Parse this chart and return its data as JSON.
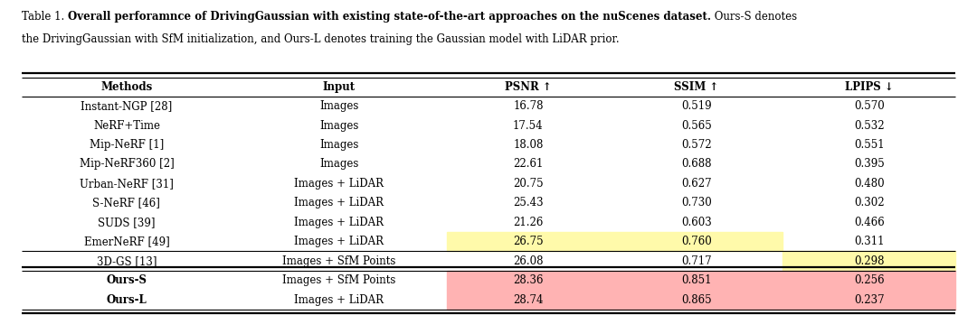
{
  "title_plain": "Table 1. ",
  "title_bold": "Overall perforamnce of DrivingGaussian with existing state-of-the-art approaches on the nuScenes dataset.",
  "title_suffix": " Ours-S denotes",
  "title_line2": "the DrivingGaussian with SfM initialization, and Ours-L denotes training the Gaussian model with LiDAR prior.",
  "columns": [
    "Methods",
    "Input",
    "PSNR ↑",
    "SSIM ↑",
    "LPIPS ↓"
  ],
  "rows": [
    [
      "Instant-NGP [28]",
      "Images",
      "16.78",
      "0.519",
      "0.570"
    ],
    [
      "NeRF+Time",
      "Images",
      "17.54",
      "0.565",
      "0.532"
    ],
    [
      "Mip-NeRF [1]",
      "Images",
      "18.08",
      "0.572",
      "0.551"
    ],
    [
      "Mip-NeRF360 [2]",
      "Images",
      "22.61",
      "0.688",
      "0.395"
    ],
    [
      "Urban-NeRF [31]",
      "Images + LiDAR",
      "20.75",
      "0.627",
      "0.480"
    ],
    [
      "S-NeRF [46]",
      "Images + LiDAR",
      "25.43",
      "0.730",
      "0.302"
    ],
    [
      "SUDS [39]",
      "Images + LiDAR",
      "21.26",
      "0.603",
      "0.466"
    ],
    [
      "EmerNeRF [49]",
      "Images + LiDAR",
      "26.75",
      "0.760",
      "0.311"
    ],
    [
      "3D-GS [13]",
      "Images + SfM Points",
      "26.08",
      "0.717",
      "0.298"
    ],
    [
      "Ours-S",
      "Images + SfM Points",
      "28.36",
      "0.851",
      "0.256"
    ],
    [
      "Ours-L",
      "Images + LiDAR",
      "28.74",
      "0.865",
      "0.237"
    ]
  ],
  "highlight_yellow": "#FFFAAA",
  "highlight_pink": "#FFB3B3",
  "bold_rows": [
    9,
    10
  ],
  "bg_color": "#ffffff",
  "font_size": 8.5,
  "title_font_size": 8.5
}
